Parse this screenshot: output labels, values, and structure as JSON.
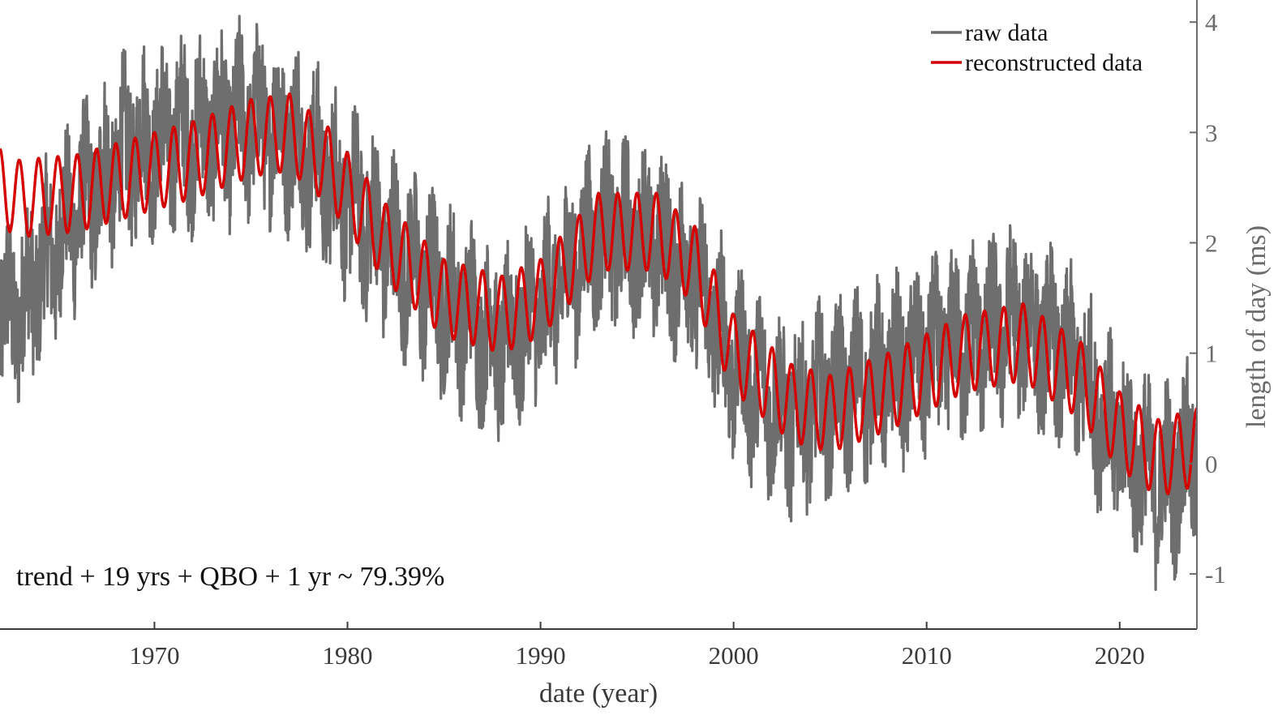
{
  "chart_data": {
    "type": "line",
    "xlabel": "date (year)",
    "ylabel": "length of day (ms)",
    "ylabel_side": "right",
    "xlim": [
      1962.0,
      2024.0
    ],
    "ylim": [
      -1.5,
      4.2
    ],
    "x_ticks": [
      1970,
      1980,
      1990,
      2000,
      2010,
      2020
    ],
    "y_ticks": [
      -1,
      0,
      1,
      2,
      3,
      4
    ],
    "grid": false,
    "legend_position": "top-right",
    "annotation": "trend + 19 yrs + QBO + 1 yr ~ 79.39%",
    "series": [
      {
        "name": "raw data",
        "color": "#6e6e6e",
        "noise_amplitude": 0.7,
        "trend": {
          "x": [
            1962.0,
            1963.0,
            1966.0,
            1969.0,
            1972.0,
            1975.0,
            1977.0,
            1979.0,
            1982.0,
            1985.0,
            1988.0,
            1990.0,
            1993.0,
            1996.0,
            1998.0,
            2000.0,
            2003.0,
            2005.0,
            2008.0,
            2012.0,
            2015.0,
            2018.0,
            2020.0,
            2022.0,
            2024.0
          ],
          "y": [
            1.3,
            1.4,
            2.3,
            2.9,
            3.0,
            3.1,
            3.0,
            2.6,
            2.0,
            1.5,
            1.1,
            1.4,
            2.1,
            2.0,
            1.7,
            0.9,
            0.4,
            0.6,
            0.8,
            1.1,
            1.3,
            0.8,
            0.2,
            -0.2,
            0.1
          ]
        }
      },
      {
        "name": "reconstructed data",
        "color": "#d40000",
        "cycle_amplitude": 0.35,
        "cycle_period_years": 1.0,
        "trend": {
          "x": [
            1962.0,
            1963.0,
            1966.0,
            1969.0,
            1972.0,
            1975.0,
            1977.0,
            1979.0,
            1982.0,
            1985.0,
            1988.0,
            1990.0,
            1993.0,
            1996.0,
            1998.0,
            2000.0,
            2003.0,
            2005.0,
            2008.0,
            2012.0,
            2015.0,
            2018.0,
            2020.0,
            2022.0,
            2024.0
          ],
          "y": [
            2.5,
            2.4,
            2.45,
            2.6,
            2.75,
            2.95,
            3.0,
            2.7,
            2.0,
            1.5,
            1.35,
            1.5,
            2.1,
            2.1,
            1.8,
            1.0,
            0.55,
            0.45,
            0.65,
            1.0,
            1.1,
            0.75,
            0.3,
            0.05,
            0.15
          ]
        }
      }
    ]
  }
}
